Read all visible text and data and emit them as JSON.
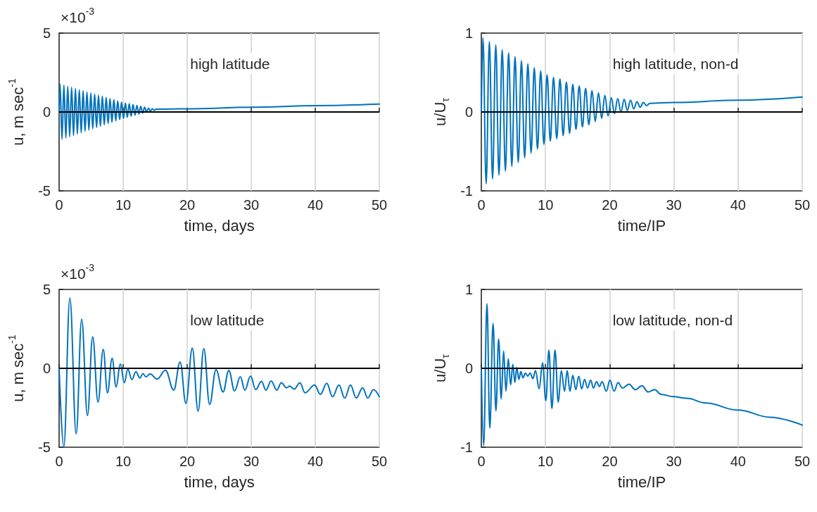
{
  "chart_data": [
    {
      "type": "line",
      "xlabel": "time, days",
      "ylabel": "u, m sec$^{-1}$",
      "annotations": [
        "high latitude",
        "×10$^{-3}$"
      ],
      "color": "#0072bd",
      "xlim": [
        0,
        50
      ],
      "xticks": [
        0,
        10,
        20,
        30,
        40,
        50
      ],
      "ylim": [
        -5,
        5
      ],
      "yticks": [
        -5,
        0,
        5
      ],
      "grid": "x",
      "ref_lines": [
        {
          "axis": "y",
          "value": 0,
          "color": "#000000"
        }
      ],
      "x": [
        0,
        0.15,
        0.45,
        0.75,
        1.05,
        1.35,
        1.65,
        1.95,
        2.25,
        2.55,
        2.85,
        3.15,
        3.45,
        3.75,
        4.05,
        4.35,
        4.65,
        4.95,
        5.25,
        5.55,
        5.85,
        6.15,
        6.45,
        6.75,
        7.05,
        7.35,
        7.65,
        7.95,
        8.25,
        8.55,
        8.85,
        9.15,
        9.45,
        9.75,
        10.05,
        10.35,
        10.65,
        10.95,
        11.25,
        11.55,
        11.85,
        12.15,
        12.45,
        12.75,
        13.05,
        13.35,
        13.65,
        13.95,
        14.25,
        14.55,
        14.85,
        15.15,
        20,
        30,
        40,
        50
      ],
      "values": [
        0,
        1.78,
        -1.73,
        1.71,
        -1.65,
        1.63,
        -1.57,
        1.57,
        -1.49,
        1.5,
        -1.4,
        1.42,
        -1.32,
        1.35,
        -1.23,
        1.27,
        -1.15,
        1.21,
        -1.07,
        1.14,
        -0.98,
        1.06,
        -0.9,
        0.99,
        -0.81,
        0.91,
        -0.73,
        0.85,
        -0.65,
        0.78,
        -0.56,
        0.7,
        -0.48,
        0.63,
        -0.4,
        0.57,
        -0.33,
        0.52,
        -0.27,
        0.47,
        -0.2,
        0.41,
        -0.13,
        0.36,
        -0.07,
        0.3,
        0,
        0.25,
        0.06,
        0.2,
        0.11,
        0.18,
        0.2,
        0.3,
        0.4,
        0.5
      ]
    },
    {
      "type": "line",
      "xlabel": "time/IP",
      "ylabel": "u/U$_{τ}$",
      "annotations": [
        "high latitude, non-d"
      ],
      "color": "#0072bd",
      "xlim": [
        0,
        50
      ],
      "xticks": [
        0,
        10,
        20,
        30,
        40,
        50
      ],
      "ylim": [
        -1,
        1
      ],
      "yticks": [
        -1,
        0,
        1
      ],
      "grid": "x",
      "ref_lines": [
        {
          "axis": "y",
          "value": 0,
          "color": "#000000"
        }
      ],
      "x": [
        0,
        0.25,
        0.75,
        1.25,
        1.75,
        2.25,
        2.75,
        3.25,
        3.75,
        4.25,
        4.75,
        5.25,
        5.75,
        6.25,
        6.75,
        7.25,
        7.75,
        8.25,
        8.75,
        9.25,
        9.75,
        10.25,
        10.75,
        11.25,
        11.75,
        12.25,
        12.75,
        13.25,
        13.75,
        14.25,
        14.75,
        15.25,
        15.75,
        16.25,
        16.75,
        17.25,
        17.75,
        18.25,
        18.75,
        19.25,
        19.75,
        20.25,
        20.75,
        21.25,
        21.75,
        22.25,
        22.75,
        23.25,
        23.75,
        24.25,
        24.75,
        25.25,
        25.75,
        26.25,
        30,
        40,
        50
      ],
      "values": [
        0,
        0.94,
        -0.91,
        0.89,
        -0.85,
        0.85,
        -0.8,
        0.79,
        -0.75,
        0.75,
        -0.69,
        0.7,
        -0.64,
        0.65,
        -0.58,
        0.61,
        -0.52,
        0.56,
        -0.47,
        0.52,
        -0.41,
        0.47,
        -0.37,
        0.44,
        -0.34,
        0.42,
        -0.3,
        0.38,
        -0.27,
        0.35,
        -0.22,
        0.33,
        -0.19,
        0.3,
        -0.16,
        0.27,
        -0.12,
        0.24,
        -0.08,
        0.21,
        -0.05,
        0.18,
        -0.02,
        0.17,
        0,
        0.16,
        0.02,
        0.15,
        0.04,
        0.13,
        0.06,
        0.12,
        0.08,
        0.11,
        0.12,
        0.15,
        0.19
      ]
    },
    {
      "type": "line",
      "xlabel": "time, days",
      "ylabel": "u, m sec$^{-1}$",
      "annotations": [
        "low latitude",
        "×10$^{-3}$"
      ],
      "color": "#0072bd",
      "xlim": [
        0,
        50
      ],
      "xticks": [
        0,
        10,
        20,
        30,
        40,
        50
      ],
      "ylim": [
        -5,
        5
      ],
      "yticks": [
        -5,
        0,
        5
      ],
      "grid": "x",
      "ref_lines": [
        {
          "axis": "y",
          "value": 0,
          "color": "#000000"
        }
      ],
      "x": [
        0,
        0.73,
        1.68,
        2.67,
        3.52,
        4.43,
        5.24,
        6.08,
        6.89,
        7.55,
        8.28,
        8.9,
        9.56,
        10.18,
        10.73,
        11.36,
        12,
        12.6,
        13.1,
        13.55,
        14.2,
        15.3,
        16.6,
        17.9,
        18.9,
        19.8,
        20.8,
        21.7,
        22.6,
        23.5,
        24.5,
        25.6,
        26.5,
        27.4,
        28.3,
        29,
        29.9,
        30.7,
        31.6,
        32.3,
        33.1,
        34,
        34.7,
        35.5,
        36,
        36.7,
        37.6,
        38.4,
        39.9,
        40.8,
        41.8,
        42.7,
        43.7,
        44.6,
        45.5,
        46.4,
        47.4,
        48.2,
        49.1,
        50
      ],
      "values": [
        0,
        -5,
        4.45,
        -4.15,
        3.11,
        -2.99,
        2,
        -2.14,
        1.21,
        -1.55,
        0.64,
        -1.18,
        0.28,
        -0.91,
        -0.06,
        -0.71,
        -0.21,
        -0.61,
        -0.34,
        -0.54,
        -0.36,
        -0.68,
        -0.12,
        -1.38,
        0.4,
        -2.22,
        1.28,
        -2.72,
        1.25,
        -2.29,
        -0.09,
        -1.5,
        -0.13,
        -1.43,
        -0.54,
        -1.38,
        -0.49,
        -1.35,
        -0.83,
        -1.38,
        -0.8,
        -1.38,
        -0.91,
        -1.23,
        -1.13,
        -1.32,
        -0.91,
        -1.55,
        -1.06,
        -1.65,
        -0.95,
        -1.8,
        -1.06,
        -1.88,
        -1.06,
        -1.88,
        -1.24,
        -1.88,
        -1.35,
        -1.8
      ]
    },
    {
      "type": "line",
      "xlabel": "time/IP",
      "ylabel": "u/U$_{τ}$",
      "annotations": [
        "low latitude, non-d"
      ],
      "color": "#0072bd",
      "xlim": [
        0,
        50
      ],
      "xticks": [
        0,
        10,
        20,
        30,
        40,
        50
      ],
      "ylim": [
        -1,
        1
      ],
      "yticks": [
        -1,
        0,
        1
      ],
      "grid": "x",
      "ref_lines": [
        {
          "axis": "y",
          "value": 0,
          "color": "#000000"
        }
      ],
      "x": [
        0,
        0.36,
        0.88,
        1.32,
        1.83,
        2.27,
        2.7,
        3.1,
        3.47,
        3.84,
        4.2,
        4.57,
        4.9,
        5.23,
        5.52,
        5.85,
        6.15,
        6.5,
        6.87,
        7.24,
        7.6,
        8.04,
        8.44,
        9,
        9.54,
        10.05,
        10.53,
        11,
        11.48,
        11.99,
        12.46,
        12.97,
        13.38,
        13.8,
        14.25,
        14.73,
        15.17,
        15.65,
        16.08,
        16.56,
        17.03,
        17.47,
        17.95,
        18.39,
        18.82,
        19.48,
        20.03,
        20.69,
        21.3,
        22,
        23,
        24,
        25,
        26,
        27,
        28,
        30,
        32,
        35,
        40,
        45,
        50
      ],
      "values": [
        0,
        -0.98,
        0.82,
        -0.76,
        0.57,
        -0.54,
        0.37,
        -0.39,
        0.22,
        -0.29,
        0.12,
        -0.21,
        0.05,
        -0.18,
        0.01,
        -0.14,
        -0.04,
        -0.12,
        -0.06,
        -0.1,
        -0.06,
        -0.13,
        -0.03,
        -0.26,
        0.07,
        -0.41,
        0.23,
        -0.51,
        0.23,
        -0.43,
        -0.03,
        -0.29,
        -0.03,
        -0.29,
        -0.09,
        -0.27,
        -0.1,
        -0.26,
        -0.14,
        -0.25,
        -0.15,
        -0.25,
        -0.17,
        -0.23,
        -0.17,
        -0.29,
        -0.15,
        -0.29,
        -0.18,
        -0.25,
        -0.2,
        -0.27,
        -0.22,
        -0.3,
        -0.27,
        -0.33,
        -0.36,
        -0.38,
        -0.44,
        -0.53,
        -0.62,
        -0.72
      ]
    }
  ]
}
